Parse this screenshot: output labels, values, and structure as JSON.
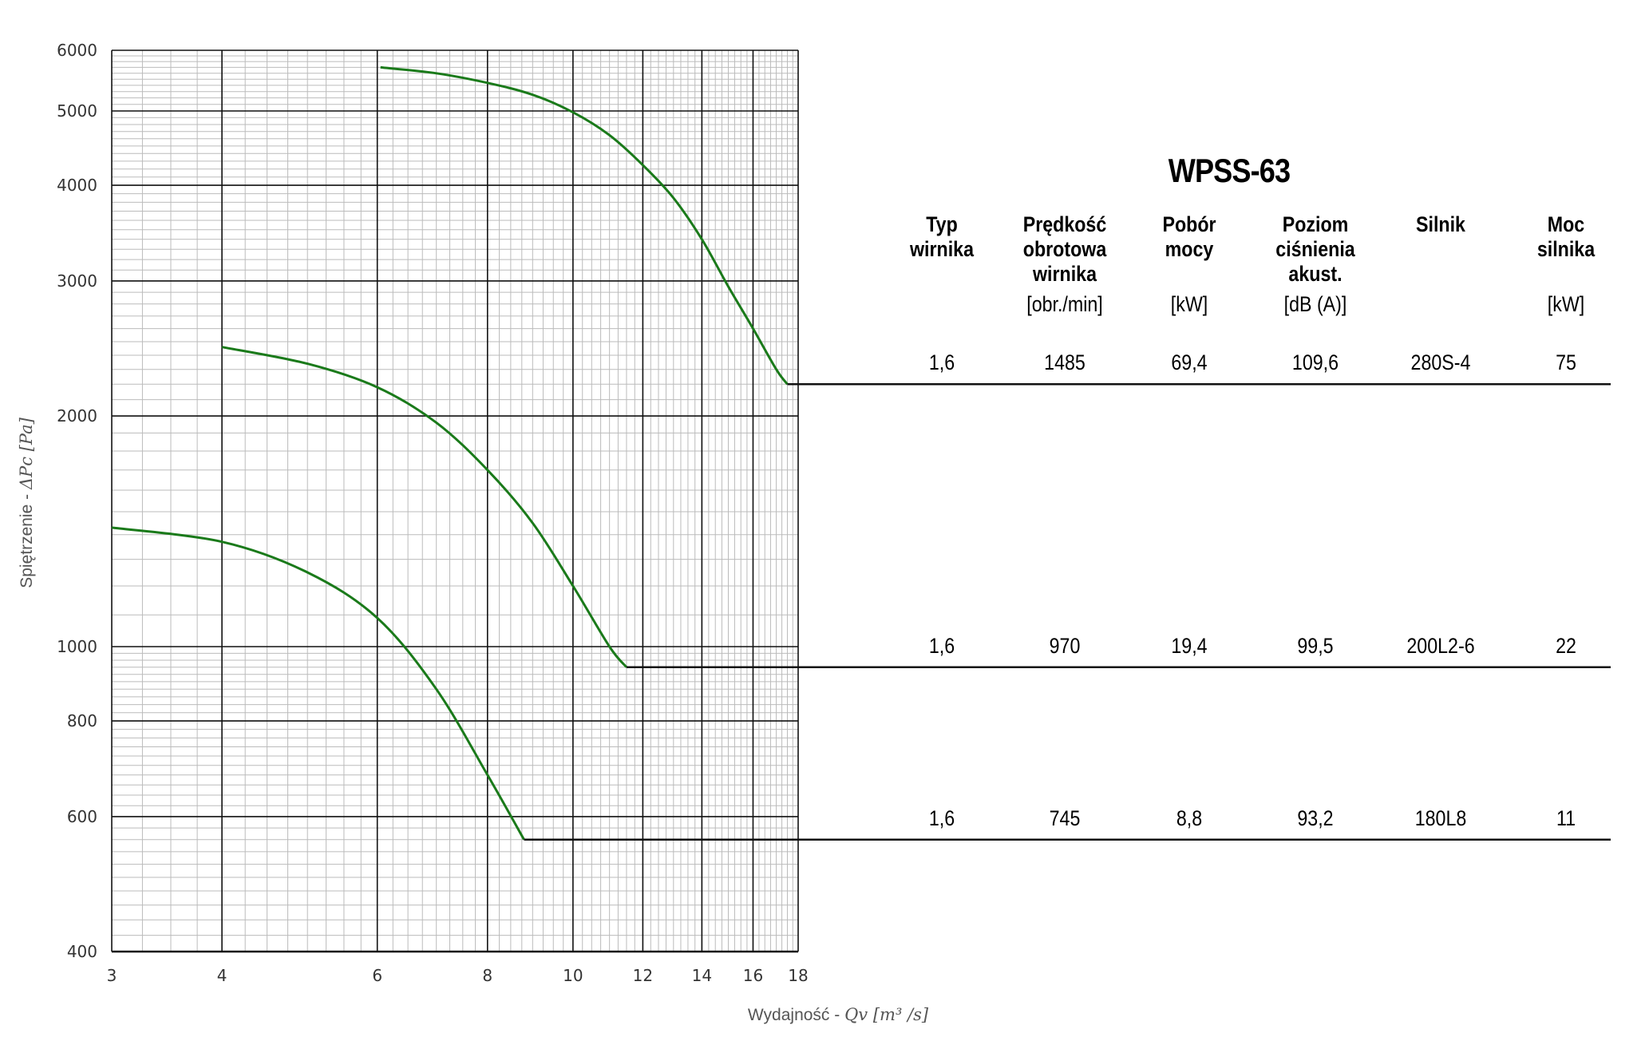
{
  "chart_data": {
    "type": "line",
    "xscale": "log",
    "yscale": "log",
    "xlim": [
      3,
      18
    ],
    "ylim": [
      400,
      6000
    ],
    "xticks": [
      3,
      4,
      6,
      8,
      10,
      12,
      14,
      16,
      18
    ],
    "yticks": [
      400,
      600,
      800,
      1000,
      2000,
      3000,
      4000,
      5000,
      6000
    ],
    "xlabel_text": "Wydajność - ",
    "xlabel_math": "Qv [m³ /s]",
    "ylabel_text": "Spiętrzenie - ",
    "ylabel_math": "ΔPc [Pa]",
    "grid": true,
    "curve_color": "#1a7a1a",
    "series": [
      {
        "x": [
          6.05,
          7.0,
          8.0,
          9.0,
          10.0,
          11.0,
          12.0,
          13.0,
          14.0,
          15.0,
          16.0,
          17.0,
          17.5
        ],
        "y": [
          5700,
          5600,
          5440,
          5250,
          4980,
          4650,
          4250,
          3850,
          3400,
          2950,
          2600,
          2300,
          2200
        ],
        "end_line_to_x": 18
      },
      {
        "x": [
          4.0,
          5.0,
          6.0,
          7.0,
          8.0,
          9.0,
          10.0,
          11.0,
          11.5
        ],
        "y": [
          2460,
          2340,
          2180,
          1960,
          1700,
          1450,
          1200,
          1000,
          940
        ],
        "end_line_to_x": 18
      },
      {
        "x": [
          3.0,
          4.0,
          5.0,
          6.0,
          7.0,
          8.0,
          8.8
        ],
        "y": [
          1430,
          1370,
          1250,
          1090,
          880,
          680,
          560
        ],
        "end_line_to_x": 18
      }
    ]
  },
  "table": {
    "title": "WPSS-63",
    "headers": [
      {
        "label": "Typ\nwirnika",
        "unit": ""
      },
      {
        "label": "Prędkość\nobrotowa\nwirnika",
        "unit": "[obr./min]"
      },
      {
        "label": "Pobór\nmocy",
        "unit": "[kW]"
      },
      {
        "label": "Poziom\nciśnienia\nakust.",
        "unit": "[dB (A)]"
      },
      {
        "label": "Silnik",
        "unit": ""
      },
      {
        "label": "Moc\nsilnika",
        "unit": "[kW]"
      }
    ],
    "rows": [
      [
        "1,6",
        "1485",
        "69,4",
        "109,6",
        "280S-4",
        "75"
      ],
      [
        "1,6",
        "970",
        "19,4",
        "99,5",
        "200L2-6",
        "22"
      ],
      [
        "1,6",
        "745",
        "8,8",
        "93,2",
        "180L8",
        "11"
      ]
    ]
  }
}
